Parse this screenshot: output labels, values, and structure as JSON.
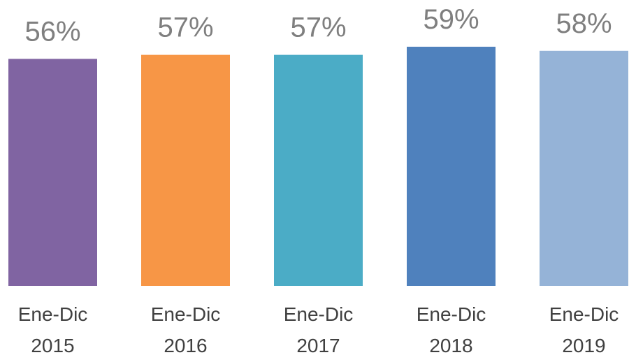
{
  "chart_data": {
    "type": "bar",
    "categories": [
      [
        "Ene-Dic",
        "2015"
      ],
      [
        "Ene-Dic",
        "2016"
      ],
      [
        "Ene-Dic",
        "2017"
      ],
      [
        "Ene-Dic",
        "2018"
      ],
      [
        "Ene-Dic",
        "2019"
      ]
    ],
    "values": [
      56,
      57,
      57,
      59,
      58
    ],
    "data_labels": [
      "56%",
      "57%",
      "57%",
      "59%",
      "58%"
    ],
    "colors": [
      "#8064a2",
      "#f79646",
      "#4bacc6",
      "#4f81bd",
      "#95b3d7"
    ],
    "ylim": [
      0,
      59
    ],
    "grid": false,
    "title": "",
    "xlabel": "",
    "ylabel": ""
  }
}
